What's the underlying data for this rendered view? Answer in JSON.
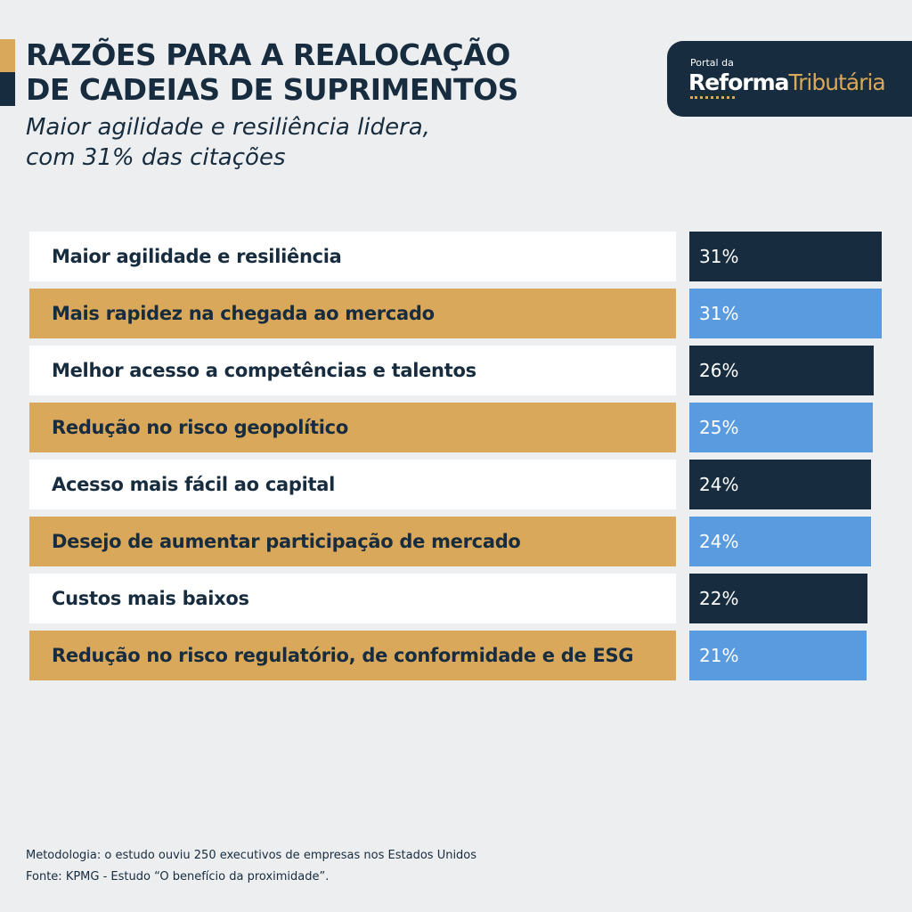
{
  "header": {
    "title_line1": "RAZÕES PARA A REALOCAÇÃO",
    "title_line2": "DE CADEIAS DE SUPRIMENTOS",
    "subtitle_line1": "Maior agilidade e resiliência lidera,",
    "subtitle_line2": "com 31% das citações"
  },
  "logo": {
    "small": "Portal da",
    "brand1": "Reforma",
    "brand2": "Tributária"
  },
  "colors": {
    "navy": "#172c3e",
    "gold": "#d9a85a",
    "blue": "#5a9be0",
    "white": "#ffffff"
  },
  "chart_data": {
    "type": "bar",
    "orientation": "horizontal",
    "title": "RAZÕES PARA A REALOCAÇÃO DE CADEIAS DE SUPRIMENTOS",
    "categories": [
      "Maior agilidade e resiliência",
      "Mais rapidez na chegada ao mercado",
      "Melhor acesso a competências e talentos",
      "Redução no risco geopolítico",
      "Acesso mais fácil ao capital",
      "Desejo de aumentar participação de mercado",
      "Custos mais baixos",
      "Redução no risco regulatório, de conformidade e de ESG"
    ],
    "values": [
      31,
      31,
      26,
      25,
      24,
      24,
      22,
      21
    ],
    "labels": [
      "31%",
      "31%",
      "26%",
      "25%",
      "24%",
      "24%",
      "22%",
      "21%"
    ],
    "unit": "%"
  },
  "footer": {
    "methodology": "Metodologia: o estudo ouviu 250 executivos de empresas nos Estados Unidos",
    "source": "Fonte: KPMG - Estudo “O benefício da proximidade”."
  }
}
